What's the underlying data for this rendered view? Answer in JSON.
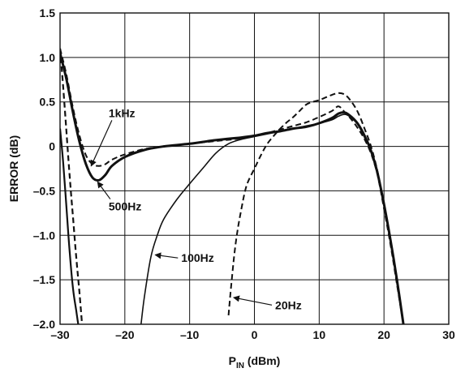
{
  "chart_data": {
    "type": "line",
    "title": "",
    "xlabel_main": "P",
    "xlabel_sub": "IN",
    "xlabel_unit": " (dBm)",
    "ylabel": "ERROR (dB)",
    "xlim": [
      -30,
      30
    ],
    "ylim": [
      -2.0,
      1.5
    ],
    "grid": true,
    "x_ticks": [
      -30,
      -20,
      -10,
      0,
      10,
      20,
      30
    ],
    "x_tick_labels": [
      "–30",
      "–20",
      "–10",
      "0",
      "10",
      "20",
      "30"
    ],
    "y_ticks": [
      1.5,
      1.0,
      0.5,
      0,
      -0.5,
      -1.0,
      -1.5,
      -2.0
    ],
    "y_tick_labels": [
      "1.5",
      "1.0",
      "0.5",
      "0",
      "–0.5",
      "–1.0",
      "–1.5",
      "–2.0"
    ],
    "series": [
      {
        "name": "500Hz",
        "style": "thick",
        "points": [
          [
            -30,
            1.05
          ],
          [
            -29,
            0.75
          ],
          [
            -28,
            0.38
          ],
          [
            -27,
            0.05
          ],
          [
            -26,
            -0.2
          ],
          [
            -25,
            -0.35
          ],
          [
            -24,
            -0.38
          ],
          [
            -23,
            -0.32
          ],
          [
            -22,
            -0.22
          ],
          [
            -20,
            -0.12
          ],
          [
            -17,
            -0.04
          ],
          [
            -14,
            0.0
          ],
          [
            -10,
            0.03
          ],
          [
            -6,
            0.07
          ],
          [
            -2,
            0.1
          ],
          [
            0,
            0.12
          ],
          [
            2,
            0.15
          ],
          [
            4,
            0.17
          ],
          [
            6,
            0.2
          ],
          [
            8,
            0.22
          ],
          [
            10,
            0.26
          ],
          [
            12,
            0.32
          ],
          [
            13,
            0.37
          ],
          [
            14,
            0.38
          ],
          [
            15,
            0.33
          ],
          [
            16,
            0.25
          ],
          [
            17,
            0.12
          ],
          [
            18,
            -0.05
          ],
          [
            19,
            -0.3
          ],
          [
            20,
            -0.65
          ],
          [
            21,
            -1.05
          ],
          [
            22,
            -1.5
          ],
          [
            23,
            -2.0
          ]
        ]
      },
      {
        "name": "1kHz",
        "style": "dashed",
        "points": [
          [
            -30,
            1.1
          ],
          [
            -29,
            0.8
          ],
          [
            -28,
            0.43
          ],
          [
            -27,
            0.12
          ],
          [
            -26,
            -0.1
          ],
          [
            -25,
            -0.2
          ],
          [
            -24,
            -0.22
          ],
          [
            -23,
            -0.2
          ],
          [
            -22,
            -0.15
          ],
          [
            -20,
            -0.09
          ],
          [
            -17,
            -0.03
          ],
          [
            -14,
            0.0
          ],
          [
            -10,
            0.03
          ],
          [
            -6,
            0.06
          ],
          [
            -2,
            0.09
          ],
          [
            0,
            0.12
          ],
          [
            2,
            0.15
          ],
          [
            4,
            0.19
          ],
          [
            6,
            0.23
          ],
          [
            8,
            0.27
          ],
          [
            10,
            0.33
          ],
          [
            12,
            0.4
          ],
          [
            13,
            0.45
          ],
          [
            14,
            0.38
          ],
          [
            15,
            0.3
          ],
          [
            16,
            0.2
          ],
          [
            17,
            0.08
          ],
          [
            18,
            -0.08
          ],
          [
            19,
            -0.32
          ],
          [
            20,
            -0.7
          ],
          [
            21,
            -1.1
          ],
          [
            22,
            -1.55
          ],
          [
            23,
            -2.0
          ]
        ]
      },
      {
        "name": "100Hz",
        "style": "thin",
        "points": [
          [
            -17.5,
            -2.0
          ],
          [
            -17,
            -1.7
          ],
          [
            -16,
            -1.25
          ],
          [
            -15,
            -1.0
          ],
          [
            -14,
            -0.82
          ],
          [
            -12,
            -0.6
          ],
          [
            -10,
            -0.42
          ],
          [
            -8,
            -0.25
          ],
          [
            -6,
            -0.08
          ],
          [
            -4,
            0.03
          ],
          [
            -2,
            0.08
          ],
          [
            0,
            0.11
          ],
          [
            2,
            0.14
          ],
          [
            4,
            0.17
          ],
          [
            6,
            0.2
          ],
          [
            8,
            0.23
          ],
          [
            10,
            0.26
          ],
          [
            12,
            0.3
          ],
          [
            13,
            0.34
          ],
          [
            14,
            0.36
          ],
          [
            15,
            0.32
          ],
          [
            16,
            0.24
          ],
          [
            17,
            0.1
          ],
          [
            18,
            -0.05
          ],
          [
            19,
            -0.3
          ],
          [
            20,
            -0.65
          ],
          [
            21,
            -1.05
          ],
          [
            22,
            -1.5
          ],
          [
            23,
            -2.0
          ]
        ]
      },
      {
        "name": "20Hz",
        "style": "dashed",
        "points": [
          [
            -4,
            -1.9
          ],
          [
            -3.5,
            -1.5
          ],
          [
            -3,
            -1.15
          ],
          [
            -2.5,
            -0.9
          ],
          [
            -2,
            -0.7
          ],
          [
            -1.5,
            -0.52
          ],
          [
            -1,
            -0.4
          ],
          [
            0,
            -0.25
          ],
          [
            1,
            -0.1
          ],
          [
            2,
            0.03
          ],
          [
            3,
            0.12
          ],
          [
            4,
            0.2
          ],
          [
            5,
            0.27
          ],
          [
            6,
            0.33
          ],
          [
            7,
            0.4
          ],
          [
            8,
            0.47
          ],
          [
            9,
            0.5
          ],
          [
            10,
            0.52
          ],
          [
            11,
            0.55
          ],
          [
            12,
            0.58
          ],
          [
            13,
            0.6
          ],
          [
            14,
            0.58
          ],
          [
            15,
            0.5
          ],
          [
            16,
            0.38
          ],
          [
            17,
            0.2
          ],
          [
            18,
            0.0
          ],
          [
            19,
            -0.28
          ],
          [
            20,
            -0.65
          ],
          [
            21,
            -1.05
          ],
          [
            22,
            -1.5
          ],
          [
            23,
            -2.0
          ]
        ]
      },
      {
        "name": "",
        "style": "solid-steep",
        "points": [
          [
            -30,
            0.2
          ],
          [
            -29.5,
            -0.2
          ],
          [
            -29,
            -0.7
          ],
          [
            -28.5,
            -1.2
          ],
          [
            -28,
            -1.6
          ],
          [
            -27.5,
            -1.85
          ],
          [
            -27.2,
            -2.0
          ]
        ]
      },
      {
        "name": "",
        "style": "dashed-steep",
        "points": [
          [
            -30,
            1.1
          ],
          [
            -29.5,
            0.65
          ],
          [
            -29,
            0.15
          ],
          [
            -28.5,
            -0.35
          ],
          [
            -28,
            -0.8
          ],
          [
            -27.5,
            -1.25
          ],
          [
            -27,
            -1.65
          ],
          [
            -26.6,
            -2.0
          ]
        ]
      }
    ],
    "annotations": [
      {
        "text": "1kHz",
        "x": -22.5,
        "y": 0.33,
        "arrow_to": [
          -25.2,
          -0.22
        ]
      },
      {
        "text": "500Hz",
        "x": -22.5,
        "y": -0.72,
        "arrow_to": [
          -24.2,
          -0.4
        ]
      },
      {
        "text": "100Hz",
        "x": -11.3,
        "y": -1.3,
        "arrow_to": [
          -15.3,
          -1.22
        ]
      },
      {
        "text": "20Hz",
        "x": 3.2,
        "y": -1.83,
        "arrow_to": [
          -3.2,
          -1.7
        ]
      }
    ]
  }
}
